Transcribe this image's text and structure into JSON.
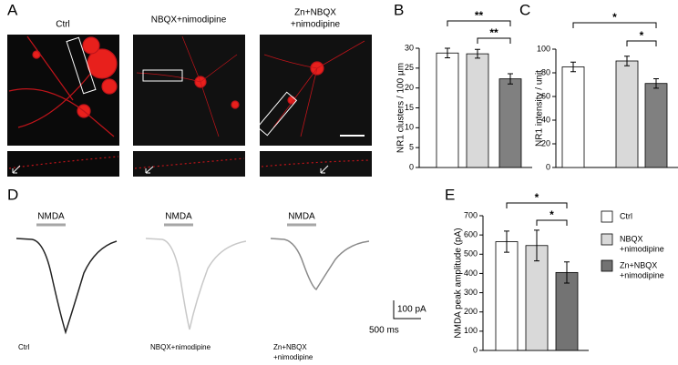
{
  "panels": [
    "A",
    "B",
    "C",
    "D",
    "E"
  ],
  "images": [
    [
      "Ctrl"
    ],
    [
      "NBQX+nimodipine"
    ],
    [
      "Zn+NBQX",
      "+nimodipine"
    ]
  ],
  "stimulus": "NMDA",
  "traces": [
    [
      "Ctrl"
    ],
    [
      "NBQX+nimodipine"
    ],
    [
      "Zn+NBQX",
      "+nimodipine"
    ]
  ],
  "scale_bar": {
    "current": "100 pA",
    "time": "500 ms"
  },
  "legend": [
    {
      "lines": [
        "Ctrl"
      ],
      "color": "#ffffff"
    },
    {
      "lines": [
        "NBQX",
        "+nimodipine"
      ],
      "color": "#d9d9d9"
    },
    {
      "lines": [
        "Zn+NBQX",
        "+nimodipine"
      ],
      "color": "#737373"
    }
  ],
  "chart_data": [
    {
      "type": "bar",
      "ylabel": "NR1 clusters / 100 µm",
      "values": [
        28.8,
        28.6,
        22.3
      ],
      "errors": [
        1.2,
        1.1,
        1.3
      ],
      "colors": [
        "#ffffff",
        "#d9d9d9",
        "#808080"
      ],
      "ylim": [
        0,
        30
      ],
      "yticks": [
        0,
        5,
        10,
        15,
        20,
        25,
        30
      ],
      "annotations": [
        "**",
        "**"
      ]
    },
    {
      "type": "bar",
      "ylabel": "NR1 intensity / unit",
      "values": [
        85,
        90,
        71
      ],
      "errors": [
        4,
        4,
        4
      ],
      "colors": [
        "#ffffff",
        "#d9d9d9",
        "#808080"
      ],
      "ylim": [
        0,
        100
      ],
      "yticks": [
        0,
        20,
        40,
        60,
        80,
        100
      ],
      "annotations": [
        "*",
        "*"
      ]
    },
    {
      "type": "bar",
      "ylabel": "NMDA peak amplitude (pA)",
      "values": [
        565,
        545,
        405
      ],
      "errors": [
        55,
        80,
        55
      ],
      "colors": [
        "#ffffff",
        "#d9d9d9",
        "#737373"
      ],
      "ylim": [
        0,
        700
      ],
      "yticks": [
        0,
        100,
        200,
        300,
        400,
        500,
        600,
        700
      ],
      "annotations": [
        "*",
        "*"
      ]
    }
  ]
}
